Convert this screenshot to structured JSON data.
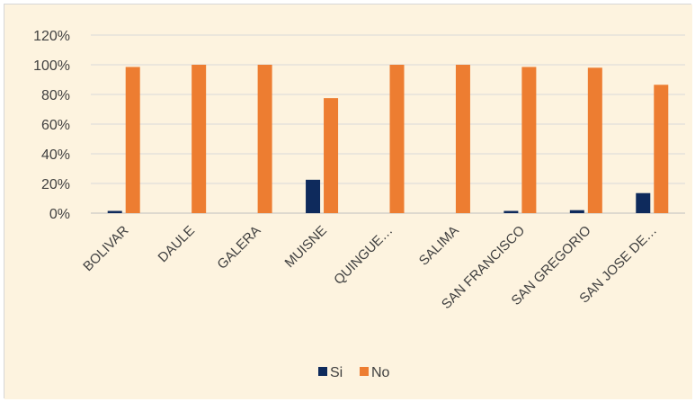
{
  "chart_data": {
    "type": "bar",
    "title": "",
    "xlabel": "",
    "ylabel": "",
    "ylim": [
      0,
      1.2
    ],
    "y_ticks": [
      "0%",
      "20%",
      "40%",
      "60%",
      "80%",
      "100%",
      "120%"
    ],
    "categories": [
      "BOLIVAR",
      "DAULE",
      "GALERA",
      "MUISNE",
      "QUINGUE…",
      "SALIMA",
      "SAN FRANCISCO",
      "SAN GREGORIO",
      "SAN JOSE DE…"
    ],
    "series": [
      {
        "name": "Si",
        "color": "#0e2a5c",
        "values": [
          0.015,
          0.0,
          0.0,
          0.225,
          0.0,
          0.0,
          0.015,
          0.02,
          0.135
        ]
      },
      {
        "name": "No",
        "color": "#ed7d31",
        "values": [
          0.985,
          1.0,
          1.0,
          0.775,
          1.0,
          1.0,
          0.985,
          0.98,
          0.865
        ]
      }
    ],
    "grid": true,
    "legend_position": "bottom",
    "background": "#fdf3df"
  }
}
